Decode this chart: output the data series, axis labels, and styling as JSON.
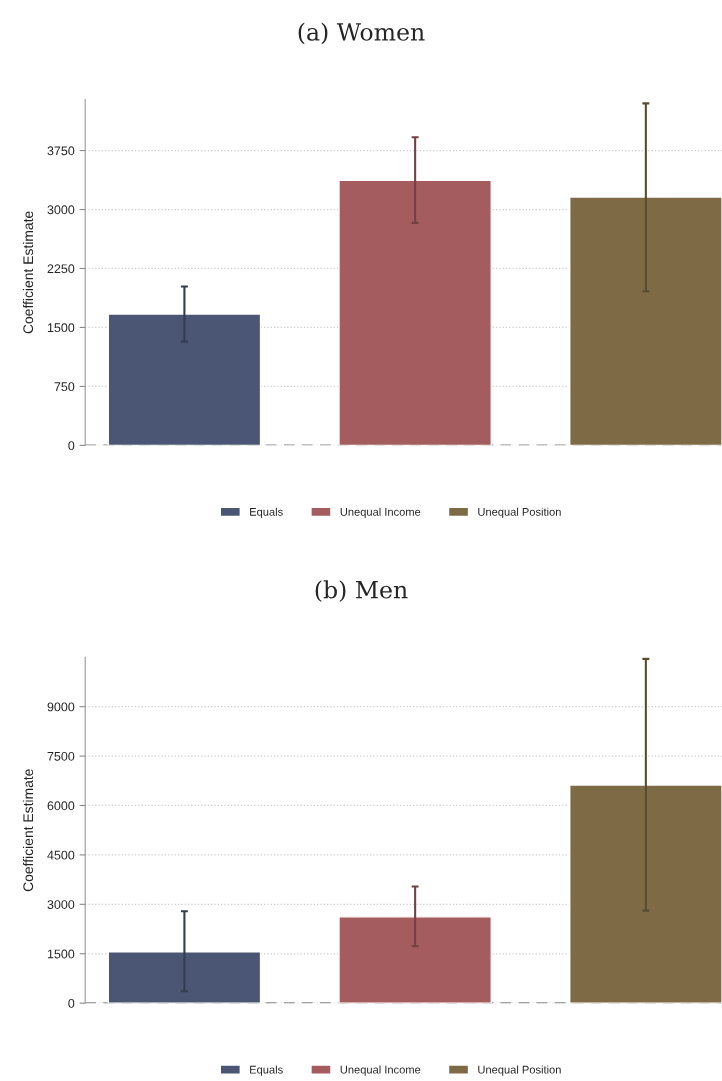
{
  "chart_data": [
    {
      "type": "bar",
      "title": "(a) Women",
      "ylabel": "Coefficient Estimate",
      "categories": [
        null
      ],
      "series": [
        {
          "name": "Equals",
          "color": "#4a5673",
          "values": [
            1670
          ],
          "errors": [
            [
              1320,
              2020
            ]
          ]
        },
        {
          "name": "Unequal Income",
          "color": "#a55c5f",
          "values": [
            3370
          ],
          "errors": [
            [
              2830,
              3920
            ]
          ]
        },
        {
          "name": "Unequal Position",
          "color": "#7e6b45",
          "values": [
            3160
          ],
          "errors": [
            [
              1960,
              4350
            ]
          ]
        }
      ],
      "ylim": [
        0,
        4400
      ],
      "yticks": [
        0,
        750,
        1500,
        2250,
        3000,
        3750
      ],
      "grid": "y",
      "legend": "bottom",
      "ref_lines": [
        {
          "axis": "y",
          "value": 0,
          "line_style": "dashed",
          "color": "#888888"
        }
      ]
    },
    {
      "type": "bar",
      "title": "(b) Men",
      "ylabel": "Coefficient Estimate",
      "categories": [
        null
      ],
      "series": [
        {
          "name": "Equals",
          "color": "#4a5673",
          "values": [
            1560
          ],
          "errors": [
            [
              360,
              2790
            ]
          ]
        },
        {
          "name": "Unequal Income",
          "color": "#a55c5f",
          "values": [
            2620
          ],
          "errors": [
            [
              1730,
              3540
            ]
          ]
        },
        {
          "name": "Unequal Position",
          "color": "#7e6b45",
          "values": [
            6620
          ],
          "errors": [
            [
              2810,
              10450
            ]
          ]
        }
      ],
      "ylim": [
        0,
        10500
      ],
      "yticks": [
        0,
        1500,
        3000,
        4500,
        6000,
        7500,
        9000
      ],
      "grid": "y",
      "legend": "bottom",
      "ref_lines": [
        {
          "axis": "y",
          "value": 0,
          "line_style": "dashed",
          "color": "#888888"
        }
      ]
    }
  ]
}
